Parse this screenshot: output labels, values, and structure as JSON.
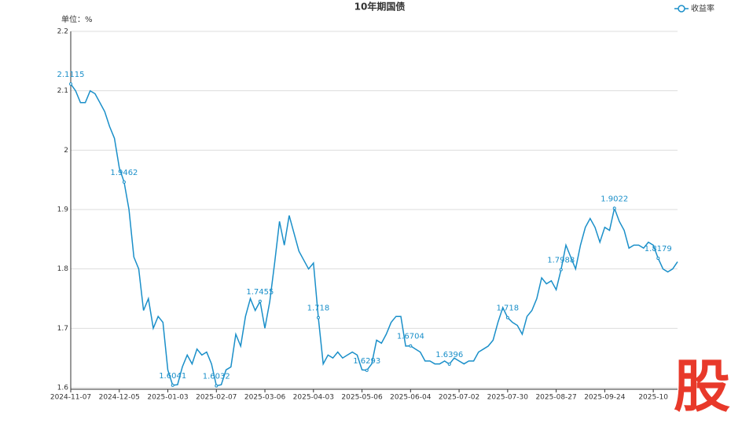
{
  "watermark": "股",
  "chart_data": {
    "type": "line",
    "title": "10年期国债",
    "y_label": "单位：%",
    "categories": [
      "2024-11-07",
      null,
      null,
      null,
      null,
      null,
      null,
      null,
      null,
      null,
      "2024-12-05",
      null,
      null,
      null,
      null,
      null,
      null,
      null,
      null,
      null,
      "2025-01-03",
      null,
      null,
      null,
      null,
      null,
      null,
      null,
      null,
      null,
      "2025-02-07",
      null,
      null,
      null,
      null,
      null,
      null,
      null,
      null,
      null,
      "2025-03-06",
      null,
      null,
      null,
      null,
      null,
      null,
      null,
      null,
      null,
      "2025-04-03",
      null,
      null,
      null,
      null,
      null,
      null,
      null,
      null,
      null,
      "2025-05-06",
      null,
      null,
      null,
      null,
      null,
      null,
      null,
      null,
      null,
      "2025-06-04",
      null,
      null,
      null,
      null,
      null,
      null,
      null,
      null,
      null,
      "2025-07-02",
      null,
      null,
      null,
      null,
      null,
      null,
      null,
      null,
      null,
      "2025-07-30",
      null,
      null,
      null,
      null,
      null,
      null,
      null,
      null,
      null,
      "2025-08-27",
      null,
      null,
      null,
      null,
      null,
      null,
      null,
      null,
      null,
      "2025-09-24",
      null,
      null,
      null,
      null,
      null,
      null,
      null,
      null,
      null,
      "2025-10",
      null,
      null,
      null,
      null,
      null
    ],
    "series": [
      {
        "name": "收益率",
        "color": "#1a8fc9",
        "values": [
          2.1115,
          2.1,
          2.08,
          2.08,
          2.1,
          2.095,
          2.08,
          2.065,
          2.04,
          2.02,
          1.97,
          1.9462,
          1.9,
          1.82,
          1.8,
          1.73,
          1.75,
          1.7,
          1.72,
          1.71,
          1.63,
          1.6041,
          1.605,
          1.635,
          1.655,
          1.64,
          1.665,
          1.655,
          1.66,
          1.64,
          1.6032,
          1.605,
          1.63,
          1.635,
          1.69,
          1.67,
          1.72,
          1.75,
          1.73,
          1.7455,
          1.7,
          1.745,
          1.81,
          1.88,
          1.84,
          1.89,
          1.86,
          1.83,
          1.815,
          1.8,
          1.81,
          1.718,
          1.64,
          1.655,
          1.65,
          1.66,
          1.65,
          1.655,
          1.66,
          1.655,
          1.63,
          1.6293,
          1.64,
          1.68,
          1.675,
          1.69,
          1.71,
          1.72,
          1.72,
          1.67,
          1.6704,
          1.665,
          1.66,
          1.645,
          1.645,
          1.64,
          1.64,
          1.645,
          1.6396,
          1.65,
          1.645,
          1.64,
          1.645,
          1.645,
          1.66,
          1.665,
          1.67,
          1.68,
          1.71,
          1.735,
          1.718,
          1.71,
          1.705,
          1.69,
          1.72,
          1.73,
          1.75,
          1.785,
          1.775,
          1.78,
          1.765,
          1.7988,
          1.84,
          1.82,
          1.8,
          1.84,
          1.87,
          1.885,
          1.87,
          1.845,
          1.87,
          1.865,
          1.9022,
          1.88,
          1.865,
          1.835,
          1.84,
          1.84,
          1.835,
          1.845,
          1.84,
          1.8179,
          1.8,
          1.795,
          1.8,
          1.812
        ],
        "value_labels": [
          "2.1115",
          null,
          null,
          null,
          null,
          null,
          null,
          null,
          null,
          null,
          null,
          "1.9462",
          null,
          null,
          null,
          null,
          null,
          null,
          null,
          null,
          null,
          "1.6041",
          null,
          null,
          null,
          null,
          null,
          null,
          null,
          null,
          "1.6032",
          null,
          null,
          null,
          null,
          null,
          null,
          null,
          null,
          "1.7455",
          null,
          null,
          null,
          null,
          null,
          null,
          null,
          null,
          null,
          null,
          null,
          "1.718",
          null,
          null,
          null,
          null,
          null,
          null,
          null,
          null,
          null,
          "1.6293",
          null,
          null,
          null,
          null,
          null,
          null,
          null,
          null,
          "1.6704",
          null,
          null,
          null,
          null,
          null,
          null,
          null,
          "1.6396",
          null,
          null,
          null,
          null,
          null,
          null,
          null,
          null,
          null,
          null,
          null,
          "1.718",
          null,
          null,
          null,
          null,
          null,
          null,
          null,
          null,
          null,
          null,
          "1.7988",
          null,
          null,
          null,
          null,
          null,
          null,
          null,
          null,
          null,
          null,
          "1.9022",
          null,
          null,
          null,
          null,
          null,
          null,
          null,
          null,
          "1.8179",
          null,
          null,
          null,
          null
        ]
      }
    ],
    "ylim": [
      1.6,
      2.2
    ],
    "yticks": [
      1.6,
      1.7,
      1.8,
      1.9,
      2,
      2.1,
      2.2
    ],
    "grid": true,
    "legend": "top-right"
  }
}
